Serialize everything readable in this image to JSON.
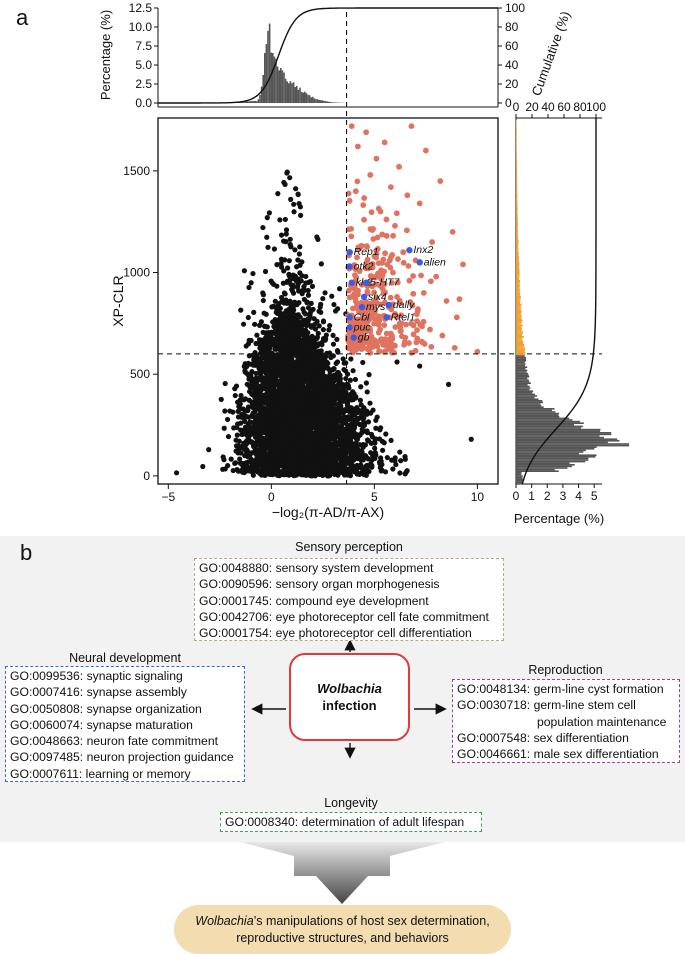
{
  "panel_labels": {
    "a": "a",
    "b": "b"
  },
  "colors": {
    "points_bg": "#111111",
    "points_sel": "#e0735f",
    "points_gene": "#3d5ce0",
    "hist_bg": "#555555",
    "hist_sel": "#f0a030"
  },
  "chart_data": [
    {
      "type": "scatter",
      "xlabel": "−log₂(π-AD/π-AX)",
      "ylabel": "XP-CLR",
      "xlim": [
        -5.5,
        11
      ],
      "ylim": [
        -40,
        1760
      ],
      "xticks": [
        "−5",
        "0",
        "5",
        "10"
      ],
      "xtick_values": [
        -5,
        0,
        5,
        10
      ],
      "yticks": [
        "0",
        "500",
        "1000",
        "1500"
      ],
      "ytick_values": [
        0,
        500,
        1000,
        1500
      ],
      "thresholds": {
        "x": 3.65,
        "y": 600
      },
      "selected_points": [
        [
          3.9,
          1720
        ],
        [
          6.8,
          1720
        ],
        [
          4.6,
          1690
        ],
        [
          5.5,
          1640
        ],
        [
          4.2,
          1620
        ],
        [
          7.5,
          1600
        ],
        [
          5.1,
          1560
        ],
        [
          6.2,
          1520
        ],
        [
          4.8,
          1480
        ],
        [
          8.2,
          1450
        ],
        [
          5.8,
          1420
        ],
        [
          4.1,
          1400
        ],
        [
          6.6,
          1380
        ],
        [
          7.2,
          1340
        ],
        [
          5.3,
          1300
        ],
        [
          4.5,
          1260
        ],
        [
          6.0,
          1230
        ],
        [
          8.8,
          1200
        ],
        [
          5.6,
          1180
        ],
        [
          7.8,
          1150
        ],
        [
          4.3,
          1120
        ],
        [
          6.4,
          1100
        ],
        [
          5.0,
          1080
        ],
        [
          7.0,
          1060
        ],
        [
          9.3,
          1040
        ],
        [
          4.7,
          1020
        ],
        [
          5.9,
          1000
        ],
        [
          8.0,
          980
        ],
        [
          6.7,
          960
        ],
        [
          4.4,
          940
        ],
        [
          5.4,
          920
        ],
        [
          7.4,
          900
        ],
        [
          6.1,
          880
        ],
        [
          8.5,
          860
        ],
        [
          4.9,
          850
        ],
        [
          5.7,
          830
        ],
        [
          7.1,
          810
        ],
        [
          6.3,
          790
        ],
        [
          9.0,
          780
        ],
        [
          4.2,
          770
        ],
        [
          5.2,
          750
        ],
        [
          6.9,
          740
        ],
        [
          7.7,
          720
        ],
        [
          4.6,
          710
        ],
        [
          5.8,
          700
        ],
        [
          8.3,
          690
        ],
        [
          6.5,
          680
        ],
        [
          4.0,
          670
        ],
        [
          7.3,
          660
        ],
        [
          5.1,
          650
        ],
        [
          6.0,
          640
        ],
        [
          8.9,
          630
        ],
        [
          4.4,
          625
        ],
        [
          7.0,
          615
        ],
        [
          5.5,
          610
        ],
        [
          10.0,
          610
        ],
        [
          6.8,
          605
        ],
        [
          4.8,
          605
        ]
      ],
      "labeled_genes": [
        {
          "name": "Rep1",
          "x": 3.8,
          "y": 1100
        },
        {
          "name": "Inx2",
          "x": 6.7,
          "y": 1110
        },
        {
          "name": "alien",
          "x": 7.2,
          "y": 1050
        },
        {
          "name": "otk2",
          "x": 3.8,
          "y": 1030
        },
        {
          "name": "kl-2",
          "x": 3.9,
          "y": 950
        },
        {
          "name": "5-HT7",
          "x": 4.6,
          "y": 950
        },
        {
          "name": "six4",
          "x": 4.5,
          "y": 880
        },
        {
          "name": "mys",
          "x": 4.4,
          "y": 830
        },
        {
          "name": "dally",
          "x": 5.7,
          "y": 840
        },
        {
          "name": "Cbl",
          "x": 3.8,
          "y": 780
        },
        {
          "name": "Rtel1",
          "x": 5.6,
          "y": 780
        },
        {
          "name": "puc",
          "x": 3.8,
          "y": 730
        },
        {
          "name": "gb",
          "x": 4.0,
          "y": 680
        }
      ]
    },
    {
      "type": "area",
      "title": "",
      "ylabel": "Percentage (%)",
      "y2label": "Cumulative (%)",
      "ylim": [
        0,
        12.5
      ],
      "yticks": [
        "0.0",
        "2.5",
        "5.0",
        "7.5",
        "10.0",
        "12.5"
      ],
      "y2ticks": [
        "0",
        "20",
        "40",
        "60",
        "80",
        "100"
      ],
      "peak_x": -0.1,
      "peak_value": 12.2,
      "threshold_x": 3.65
    },
    {
      "type": "area",
      "xlabel": "Percentage (%)",
      "x2label": "Cumulative (%)",
      "xlim": [
        0,
        5.5
      ],
      "xticks": [
        "0",
        "1",
        "2",
        "3",
        "4",
        "5"
      ],
      "x2ticks": [
        "0",
        "20",
        "40",
        "60",
        "80",
        "100"
      ],
      "peak_y": 150,
      "peak_value": 5.0,
      "threshold_y": 600
    }
  ],
  "diagram": {
    "center": {
      "line1": "Wolbachia",
      "line2": "infection"
    },
    "sensory": {
      "title": "Sensory perception",
      "items": [
        "GO:0048880: sensory system development",
        "GO:0090596: sensory organ morphogenesis",
        "GO:0001745: compound eye development",
        "GO:0042706: eye photoreceptor cell fate commitment",
        "GO:0001754: eye photoreceptor cell differentiation"
      ]
    },
    "neural": {
      "title": "Neural development",
      "items": [
        "GO:0099536: synaptic signaling",
        "GO:0007416: synapse assembly",
        "GO:0050808: synapse organization",
        "GO:0060074: synapse maturation",
        "GO:0048663: neuron fate commitment",
        "GO:0097485: neuron projection guidance",
        "GO:0007611: learning or memory"
      ]
    },
    "reproduction": {
      "title": "Reproduction",
      "items": [
        "GO:0048134: germ-line cyst formation",
        "GO:0030718: germ-line stem cell",
        "population maintenance",
        "GO:0007548: sex differentiation",
        "GO:0046661: male sex differentiation"
      ]
    },
    "longevity": {
      "title": "Longevity",
      "items": [
        "GO:0008340: determination of adult lifespan"
      ]
    },
    "conclusion": {
      "italic": "Wolbachia",
      "line1_rest": "’s manipulations of host sex determination,",
      "line2": "reproductive structures, and behaviors"
    }
  }
}
